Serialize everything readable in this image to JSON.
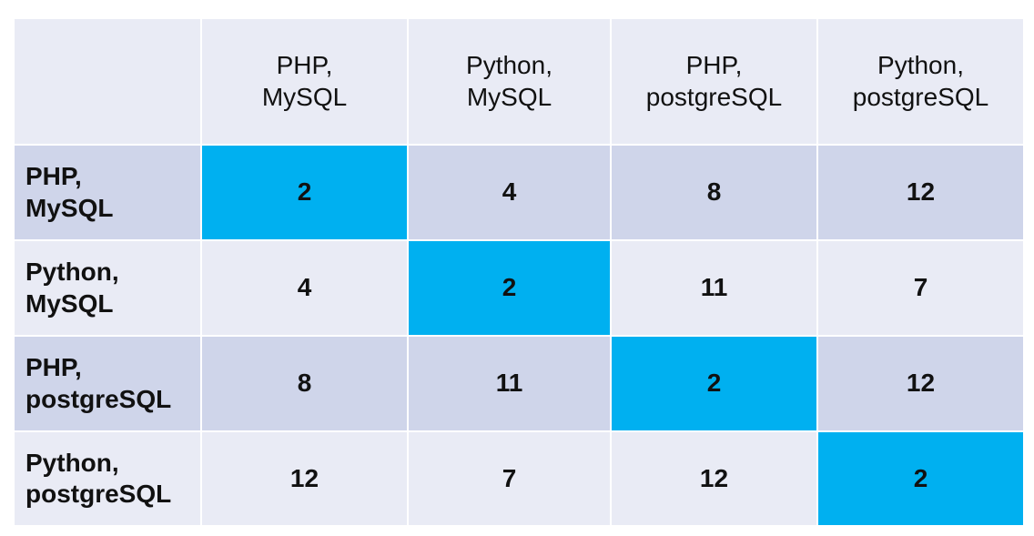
{
  "table": {
    "corner": "",
    "columns": [
      "PHP,\nMySQL",
      "Python,\nMySQL",
      "PHP,\npostgreSQL",
      "Python,\npostgreSQL"
    ],
    "rows": [
      {
        "label": "PHP,\nMySQL",
        "values": [
          "2",
          "4",
          "8",
          "12"
        ]
      },
      {
        "label": "Python,\nMySQL",
        "values": [
          "4",
          "2",
          "11",
          "7"
        ]
      },
      {
        "label": "PHP,\npostgreSQL",
        "values": [
          "8",
          "11",
          "2",
          "12"
        ]
      },
      {
        "label": "Python,\npostgreSQL",
        "values": [
          "12",
          "7",
          "12",
          "2"
        ]
      }
    ]
  },
  "colors": {
    "header_bg": "#e9ebf5",
    "row_band_dark": "#cfd5ea",
    "row_band_light": "#e9ebf5",
    "diagonal_highlight": "#00b0f0"
  }
}
